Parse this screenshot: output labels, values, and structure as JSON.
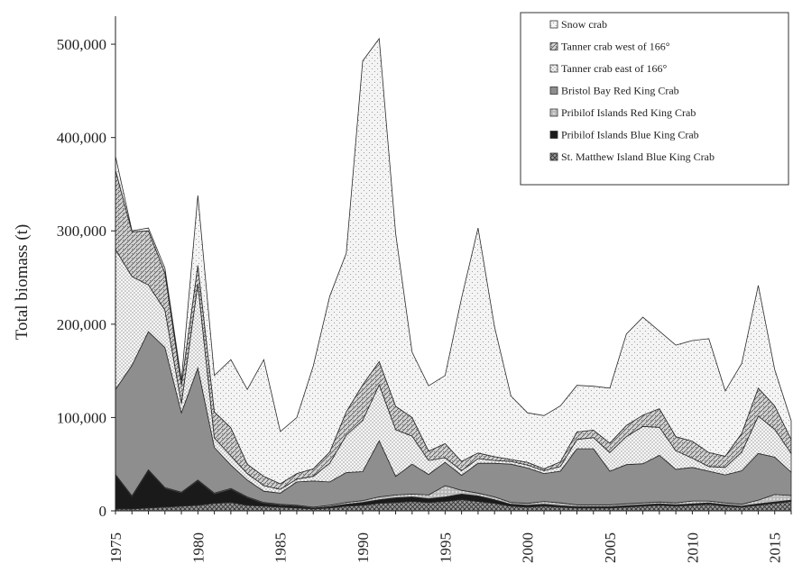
{
  "chart_data": {
    "type": "area",
    "stacked": true,
    "title": "",
    "xlabel": "",
    "ylabel": "Total biomass (t)",
    "xlim": [
      1975,
      2016
    ],
    "ylim": [
      0,
      530000
    ],
    "x_ticks": [
      1975,
      1980,
      1985,
      1990,
      1995,
      2000,
      2005,
      2010,
      2015
    ],
    "y_ticks": [
      {
        "value": 0,
        "label": "0"
      },
      {
        "value": 100000,
        "label": "100,000"
      },
      {
        "value": 200000,
        "label": "200,000"
      },
      {
        "value": 300000,
        "label": "300,000"
      },
      {
        "value": 400000,
        "label": "400,000"
      },
      {
        "value": 500000,
        "label": "500,000"
      }
    ],
    "grid": false,
    "legend_position": "top-right",
    "x": [
      1975,
      1976,
      1977,
      1978,
      1979,
      1980,
      1981,
      1982,
      1983,
      1984,
      1985,
      1986,
      1987,
      1988,
      1989,
      1990,
      1991,
      1992,
      1993,
      1994,
      1995,
      1996,
      1997,
      1998,
      1999,
      2000,
      2001,
      2002,
      2003,
      2004,
      2005,
      2006,
      2007,
      2008,
      2009,
      2010,
      2011,
      2012,
      2013,
      2014,
      2015,
      2016
    ],
    "series": [
      {
        "name": "St. Matthew Island Blue King Crab",
        "pattern": "crosshatch",
        "values": [
          2000,
          2000,
          3000,
          4000,
          5000,
          6000,
          8000,
          9000,
          6000,
          5000,
          4000,
          3000,
          2000,
          3000,
          5000,
          6000,
          8000,
          9000,
          10000,
          9000,
          10000,
          12000,
          10000,
          8000,
          5000,
          4000,
          5000,
          4000,
          3000,
          3000,
          3000,
          4000,
          5000,
          6000,
          5000,
          6000,
          7000,
          5000,
          4000,
          6000,
          8000,
          10000
        ]
      },
      {
        "name": "Pribilof Islands Blue King Crab",
        "pattern": "solid-black",
        "values": [
          36000,
          13000,
          40000,
          20000,
          14000,
          26000,
          10000,
          14000,
          8000,
          3000,
          2000,
          2000,
          1000,
          1500,
          2000,
          3000,
          4000,
          5000,
          5000,
          4000,
          5000,
          6000,
          6000,
          4000,
          2000,
          2000,
          2000,
          1500,
          1500,
          1500,
          1500,
          1500,
          1500,
          1500,
          1500,
          1500,
          1500,
          1500,
          1000,
          1500,
          1500,
          1500
        ]
      },
      {
        "name": "Pribilof Islands Red King Crab",
        "pattern": "dots",
        "values": [
          1000,
          1000,
          1000,
          1000,
          1000,
          1000,
          1000,
          1000,
          1000,
          1000,
          1000,
          1000,
          1000,
          1500,
          2000,
          2000,
          3000,
          3000,
          3000,
          4000,
          12000,
          4000,
          3000,
          3000,
          2000,
          2000,
          3000,
          3000,
          2000,
          2000,
          2000,
          2000,
          2000,
          2000,
          2000,
          3000,
          2000,
          2000,
          2000,
          4000,
          8000,
          5000
        ]
      },
      {
        "name": "Bristol Bay Red King Crab",
        "pattern": "grey",
        "values": [
          91000,
          140000,
          148000,
          150000,
          85000,
          120000,
          49000,
          25000,
          18000,
          12000,
          12000,
          25000,
          28000,
          25000,
          32000,
          31000,
          60000,
          20000,
          32000,
          22000,
          25000,
          16000,
          32000,
          36000,
          41000,
          38000,
          30000,
          34000,
          60000,
          60000,
          36000,
          42000,
          42000,
          50000,
          36000,
          36000,
          32000,
          30000,
          36000,
          50000,
          40000,
          25000
        ]
      },
      {
        "name": "Tanner crab east of 166°",
        "pattern": "fine-dots",
        "values": [
          150000,
          95000,
          50000,
          40000,
          10000,
          90000,
          10000,
          10000,
          7000,
          6000,
          4000,
          3000,
          5000,
          20000,
          40000,
          55000,
          60000,
          50000,
          30000,
          15000,
          5000,
          5000,
          5000,
          3000,
          3000,
          3000,
          3000,
          5000,
          10000,
          12000,
          20000,
          30000,
          40000,
          30000,
          20000,
          10000,
          5000,
          8000,
          20000,
          40000,
          30000,
          20000
        ]
      },
      {
        "name": "Tanner crab west of 166°",
        "pattern": "hatch",
        "values": [
          85000,
          48000,
          58000,
          40000,
          20000,
          20000,
          28000,
          30000,
          10000,
          10000,
          6000,
          6000,
          8000,
          12000,
          25000,
          38000,
          25000,
          25000,
          20000,
          10000,
          15000,
          10000,
          6000,
          4000,
          2000,
          3000,
          2000,
          5000,
          8000,
          8000,
          10000,
          12000,
          12000,
          20000,
          15000,
          18000,
          15000,
          12000,
          20000,
          30000,
          25000,
          15000
        ]
      },
      {
        "name": "Snow crab",
        "pattern": "sparse-dots",
        "values": [
          15000,
          1000,
          3000,
          5000,
          5000,
          75000,
          39000,
          73000,
          80000,
          125000,
          56000,
          60000,
          110000,
          167000,
          170000,
          347000,
          346000,
          185000,
          70000,
          70000,
          73000,
          175000,
          241000,
          139000,
          68000,
          53000,
          57000,
          60000,
          50000,
          47000,
          59000,
          98000,
          105000,
          83000,
          98000,
          108000,
          122000,
          70000,
          75000,
          110000,
          39000,
          20000
        ]
      }
    ],
    "legend_entries": [
      "Snow crab",
      "Tanner crab west of 166°",
      "Tanner crab east of 166°",
      "Bristol Bay Red King Crab",
      "Pribilof Islands Red King Crab",
      "Pribilof Islands Blue King Crab",
      "St. Matthew Island Blue King Crab"
    ]
  }
}
